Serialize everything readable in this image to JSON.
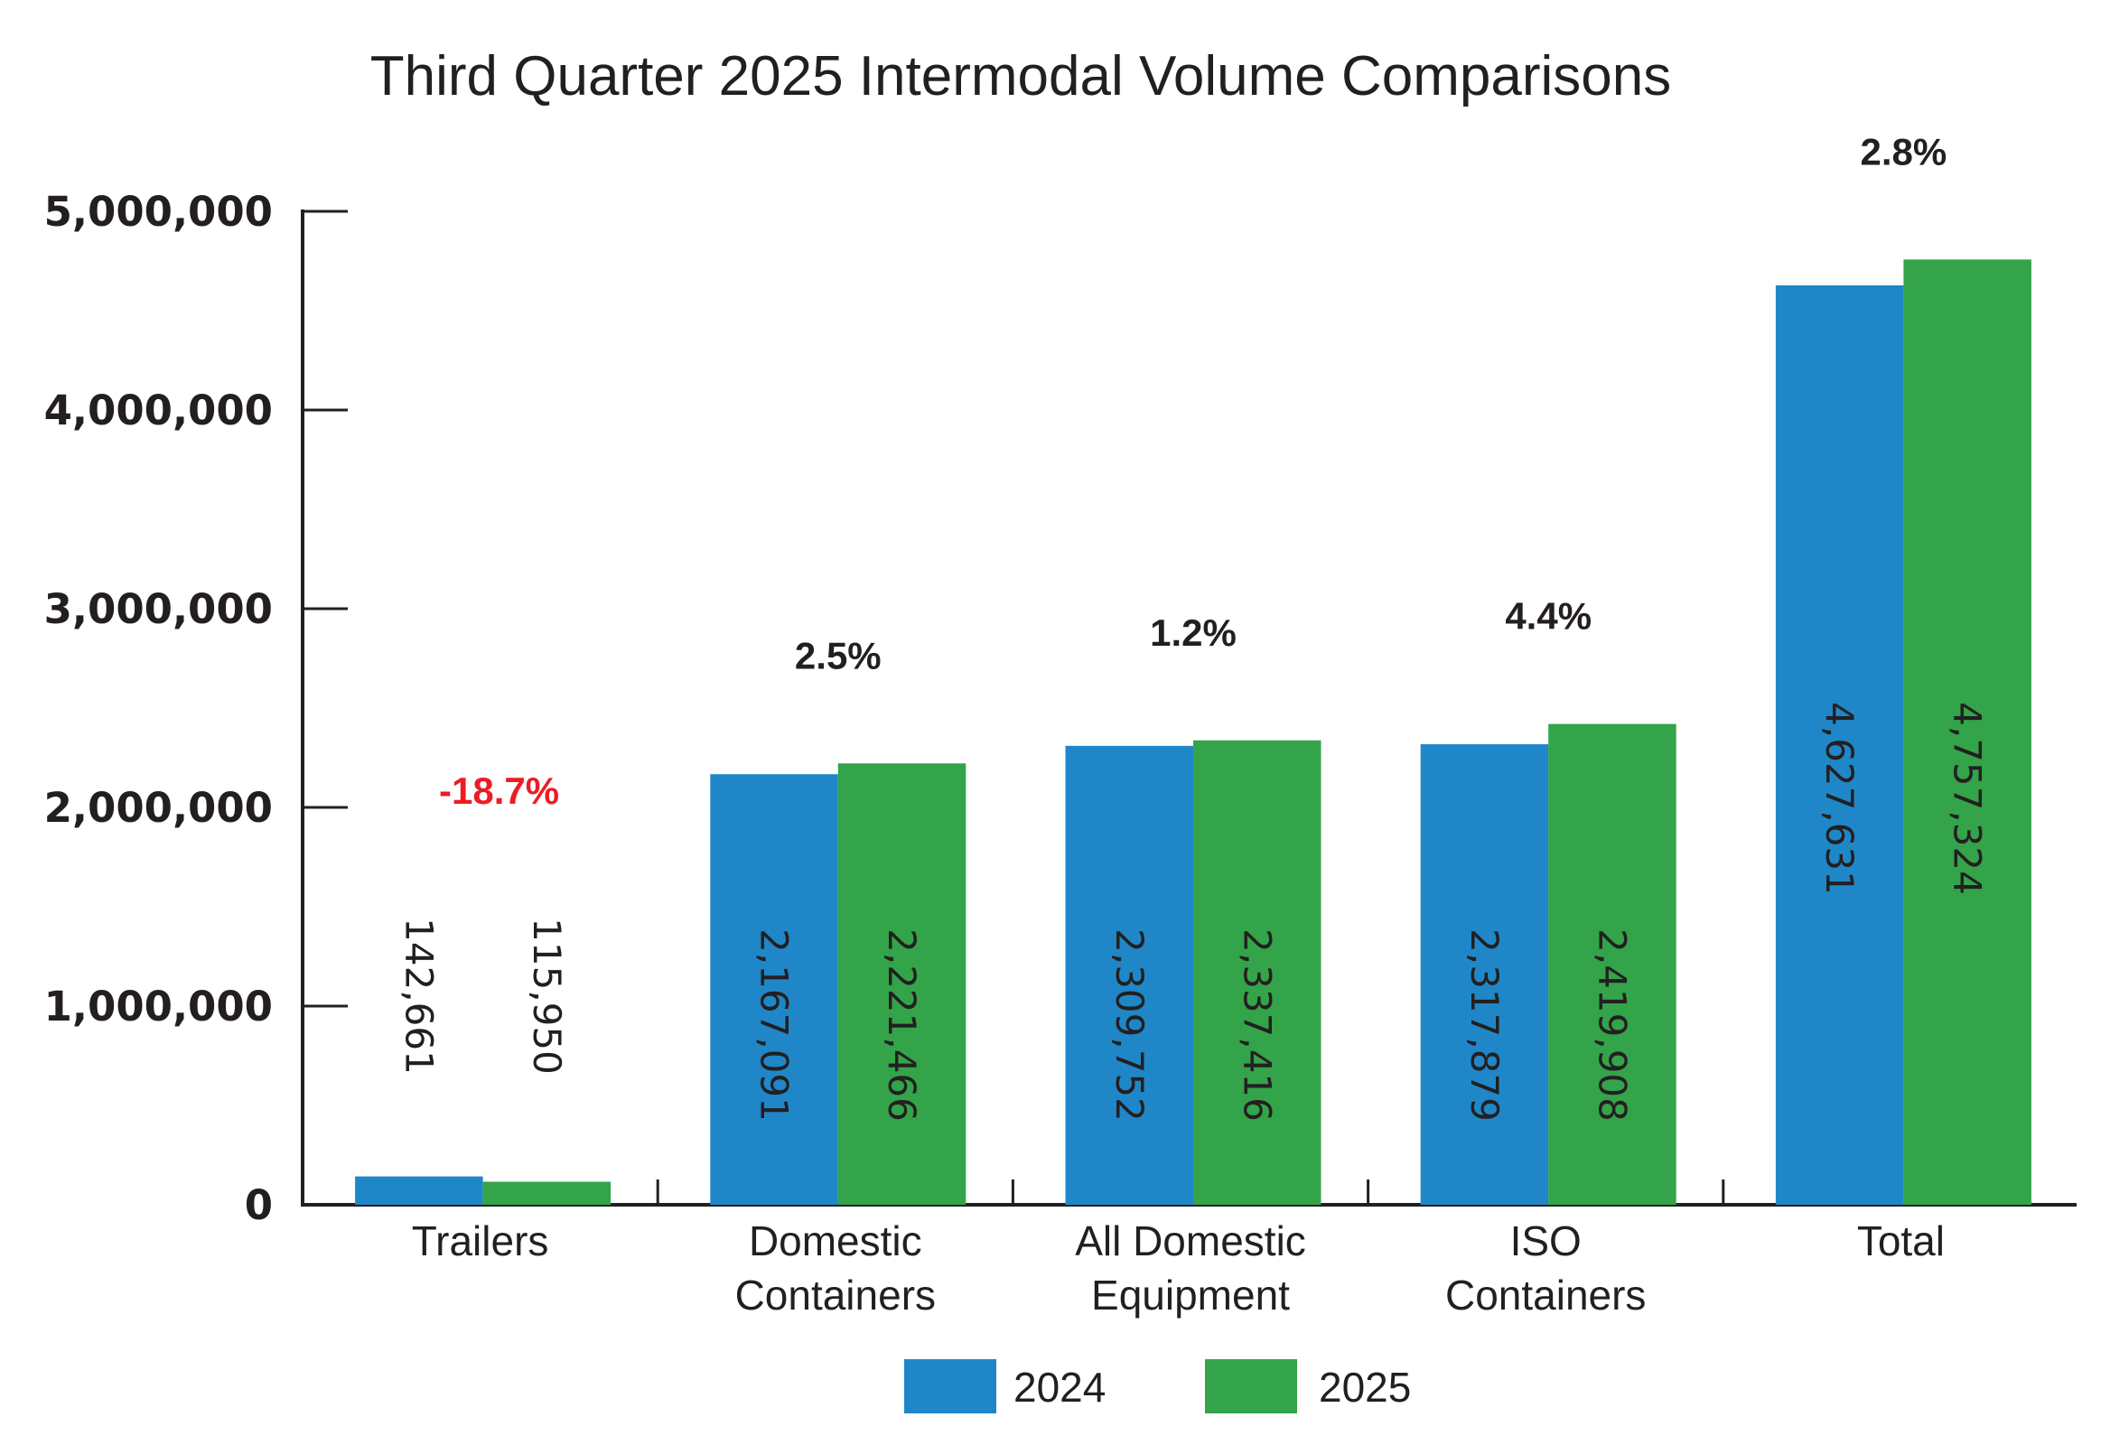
{
  "chart_data": {
    "type": "bar",
    "title": "Third Quarter 2025 Intermodal Volume Comparisons",
    "xlabel": "",
    "ylabel": "",
    "ylim": [
      0,
      5000000
    ],
    "yticks": [
      0,
      1000000,
      2000000,
      3000000,
      4000000,
      5000000
    ],
    "ytick_labels": [
      "0",
      "1,000,000",
      "2,000,000",
      "3,000,000",
      "4,000,000",
      "5,000,000"
    ],
    "grid": false,
    "categories": [
      [
        "Trailers"
      ],
      [
        "Domestic",
        "Containers"
      ],
      [
        "All Domestic",
        "Equipment"
      ],
      [
        "ISO",
        "Containers"
      ],
      [
        "Total"
      ]
    ],
    "series": [
      {
        "name": "2024",
        "color": "#1f87c8",
        "values": [
          142661,
          2167091,
          2309752,
          2317879,
          4627631
        ],
        "labels": [
          "142,661",
          "2,167,091",
          "2,309,752",
          "2,317,879",
          "4,627,631"
        ]
      },
      {
        "name": "2025",
        "color": "#33a449",
        "values": [
          115950,
          2221466,
          2337416,
          2419908,
          4757324
        ],
        "labels": [
          "115,950",
          "2,221,466",
          "2,337,416",
          "2,419,908",
          "4,757,324"
        ]
      }
    ],
    "annotations": [
      {
        "category": 0,
        "text": "-18.7%",
        "color": "#ed1c24"
      },
      {
        "category": 1,
        "text": "2.5%",
        "color": "#231f20"
      },
      {
        "category": 2,
        "text": "1.2%",
        "color": "#231f20"
      },
      {
        "category": 3,
        "text": "4.4%",
        "color": "#231f20"
      },
      {
        "category": 4,
        "text": "2.8%",
        "color": "#231f20"
      }
    ],
    "legend": {
      "position": "bottom-center",
      "entries": [
        {
          "label": "2024",
          "color": "#1f87c8"
        },
        {
          "label": "2025",
          "color": "#33a449"
        }
      ]
    }
  }
}
